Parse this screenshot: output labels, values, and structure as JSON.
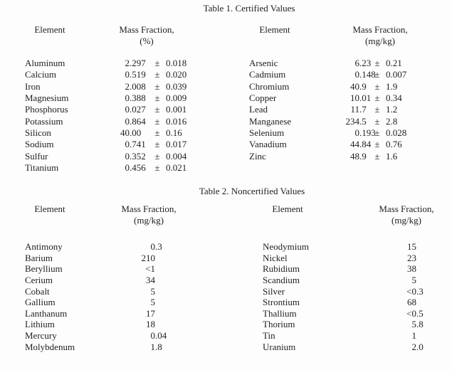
{
  "colors": {
    "background": "#fdfdfd",
    "text": "#1f1f1f"
  },
  "table1": {
    "title": "Table 1. Certified Values",
    "left": {
      "header": {
        "element": "Element",
        "mass_fraction": "Mass Fraction,",
        "unit": "(%)"
      },
      "rows": [
        {
          "element": "Aluminum",
          "value": "2.297",
          "pm": "±",
          "uncertainty": "0.018"
        },
        {
          "element": "Calcium",
          "value": "0.519",
          "pm": "±",
          "uncertainty": "0.020"
        },
        {
          "element": "Iron",
          "value": "2.008",
          "pm": "±",
          "uncertainty": "0.039"
        },
        {
          "element": "Magnesium",
          "value": "0.388",
          "pm": "±",
          "uncertainty": "0.009"
        },
        {
          "element": "Phosphorus",
          "value": "0.027",
          "pm": "±",
          "uncertainty": "0.001"
        },
        {
          "element": "Potassium",
          "value": "0.864",
          "pm": "±",
          "uncertainty": "0.016"
        },
        {
          "element": "Silicon",
          "value": "40.00",
          "pm": "±",
          "uncertainty": "0.16"
        },
        {
          "element": "Sodium",
          "value": "0.741",
          "pm": "±",
          "uncertainty": "0.017"
        },
        {
          "element": "Sulfur",
          "value": "0.352",
          "pm": "±",
          "uncertainty": "0.004"
        },
        {
          "element": "Titanium",
          "value": "0.456",
          "pm": "±",
          "uncertainty": "0.021"
        }
      ]
    },
    "right": {
      "header": {
        "element": "Element",
        "mass_fraction": "Mass Fraction,",
        "unit": "(mg/kg)"
      },
      "rows": [
        {
          "element": "Arsenic",
          "value": "6.23",
          "pm": "±",
          "uncertainty": "0.21"
        },
        {
          "element": "Cadmium",
          "value": "0.148",
          "pm": "±",
          "uncertainty": "0.007"
        },
        {
          "element": "Chromium",
          "value": "40.9",
          "pm": "±",
          "uncertainty": "1.9"
        },
        {
          "element": "Copper",
          "value": "10.01",
          "pm": "±",
          "uncertainty": "0.34"
        },
        {
          "element": "Lead",
          "value": "11.7",
          "pm": "±",
          "uncertainty": "1.2"
        },
        {
          "element": "Manganese",
          "value": "234.5",
          "pm": "±",
          "uncertainty": "2.8"
        },
        {
          "element": "Selenium",
          "value": "0.193",
          "pm": "±",
          "uncertainty": "0.028"
        },
        {
          "element": "Vanadium",
          "value": "44.84",
          "pm": "±",
          "uncertainty": "0.76"
        },
        {
          "element": "Zinc",
          "value": "48.9",
          "pm": "±",
          "uncertainty": "1.6"
        }
      ]
    }
  },
  "table2": {
    "title": "Table 2. Noncertified Values",
    "left": {
      "header": {
        "element": "Element",
        "mass_fraction": "Mass Fraction,",
        "unit": "(mg/kg)"
      },
      "rows": [
        {
          "element": "Antimony",
          "value": "0.3"
        },
        {
          "element": "Barium",
          "value": "210"
        },
        {
          "element": "Beryllium",
          "value": "<1"
        },
        {
          "element": "Cerium",
          "value": "34"
        },
        {
          "element": "Cobalt",
          "value": "5"
        },
        {
          "element": "Gallium",
          "value": "5"
        },
        {
          "element": "Lanthanum",
          "value": "17"
        },
        {
          "element": "Lithium",
          "value": "18"
        },
        {
          "element": "Mercury",
          "value": "0.04"
        },
        {
          "element": "Molybdenum",
          "value": "1.8"
        }
      ]
    },
    "right": {
      "header": {
        "element": "Element",
        "mass_fraction": "Mass Fraction,",
        "unit": "(mg/kg)"
      },
      "rows": [
        {
          "element": "Neodymium",
          "value": "15"
        },
        {
          "element": "Nickel",
          "value": "23"
        },
        {
          "element": "Rubidium",
          "value": "38"
        },
        {
          "element": "Scandium",
          "value": "5"
        },
        {
          "element": "Silver",
          "value": "<0.3"
        },
        {
          "element": "Strontium",
          "value": "68"
        },
        {
          "element": "Thallium",
          "value": "<0.5"
        },
        {
          "element": "Thorium",
          "value": "5.8"
        },
        {
          "element": "Tin",
          "value": "1"
        },
        {
          "element": "Uranium",
          "value": "2.0"
        }
      ]
    }
  }
}
